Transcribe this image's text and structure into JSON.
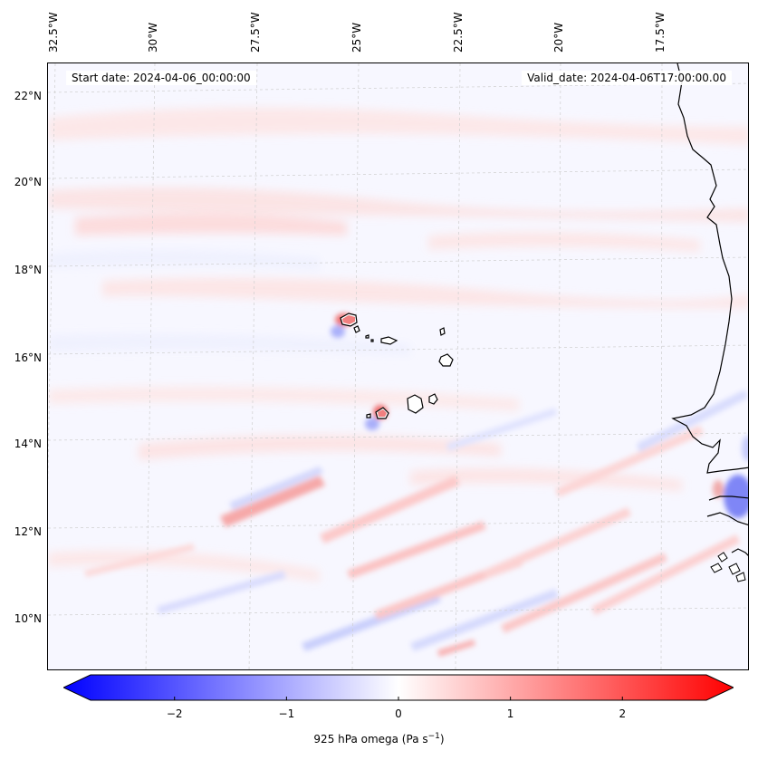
{
  "map": {
    "start_date": "Start date: 2024-04-06_00:00:00",
    "valid_date": "Valid_date: 2024-04-06T17:00:00.00",
    "longitude_labels": [
      "32.5°W",
      "30°W",
      "27.5°W",
      "25°W",
      "22.5°W",
      "20°W",
      "17.5°W"
    ],
    "latitude_labels": [
      "22°N",
      "20°N",
      "18°N",
      "16°N",
      "14°N",
      "12°N",
      "10°N"
    ],
    "field": "925 hPa omega",
    "colors": {
      "negative": "#0000ff",
      "zero": "#ffffff",
      "positive": "#ff0000",
      "coast": "#000000"
    }
  },
  "colorbar": {
    "tick_labels": [
      "−2",
      "−1",
      "0",
      "1",
      "2"
    ],
    "tick_values": [
      -2,
      -1,
      0,
      1,
      2
    ],
    "range": [
      -2.75,
      2.75
    ],
    "title_main": "925 hPa omega (Pa s",
    "title_sup": "−1",
    "title_end": ")"
  }
}
